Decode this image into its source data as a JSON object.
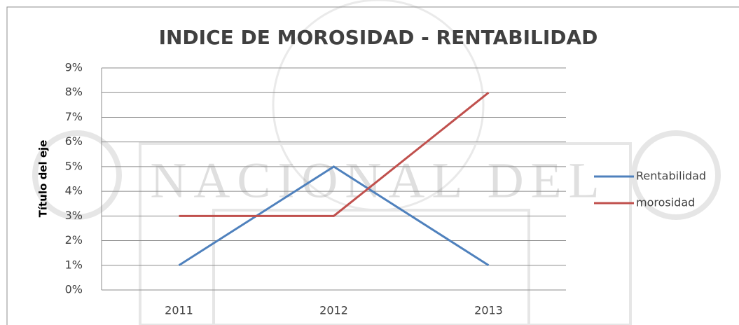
{
  "chart_data": {
    "type": "line",
    "title": "INDICE DE MOROSIDAD - RENTABILIDAD",
    "y_label": "Título del eje",
    "annotations": [
      "NACIONAL DEL"
    ],
    "categories": [
      "2011",
      "2012",
      "2013"
    ],
    "series": [
      {
        "name": "Rentabilidad",
        "color": "#4f81bd",
        "values": [
          1,
          5,
          1
        ]
      },
      {
        "name": "morosidad",
        "color": "#c0504d",
        "values": [
          3,
          3,
          8
        ]
      }
    ],
    "ylim": [
      0,
      9
    ],
    "yticks": [
      {
        "value": 0,
        "label": "0%"
      },
      {
        "value": 1,
        "label": "1%"
      },
      {
        "value": 2,
        "label": "2%"
      },
      {
        "value": 3,
        "label": "3%"
      },
      {
        "value": 4,
        "label": "4%"
      },
      {
        "value": 5,
        "label": "5%"
      },
      {
        "value": 6,
        "label": "6%"
      },
      {
        "value": 7,
        "label": "7%"
      },
      {
        "value": 8,
        "label": "8%"
      },
      {
        "value": 9,
        "label": "9%"
      }
    ],
    "grid": true,
    "legend": "right"
  }
}
